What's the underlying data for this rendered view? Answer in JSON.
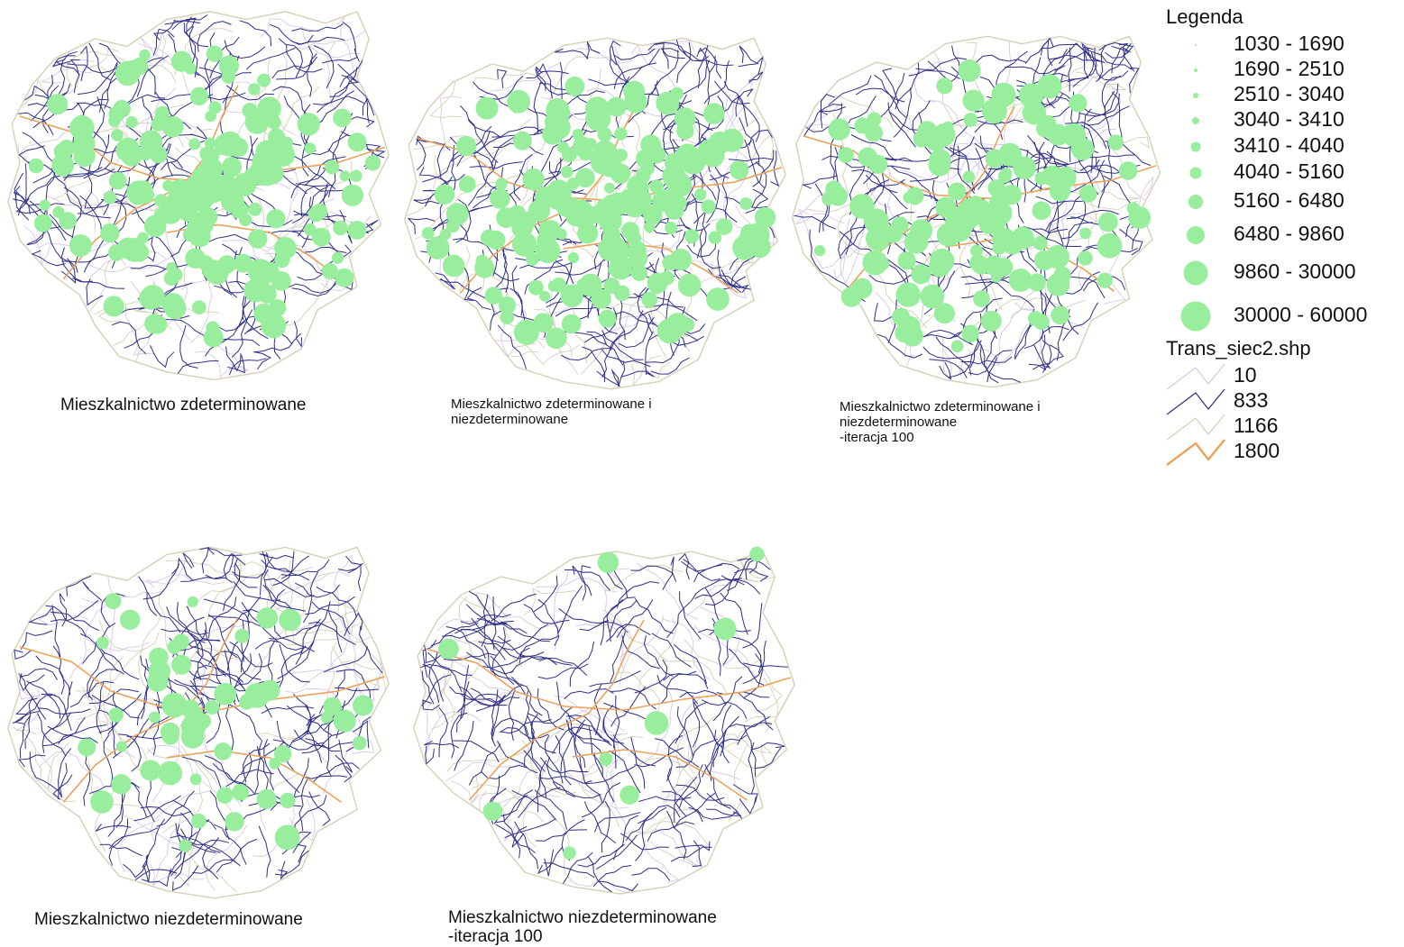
{
  "colors": {
    "settlement": "#98ee9c",
    "road_10": "#d8c8e6",
    "road_833": "#2e2f86",
    "road_1166": "#d6d0b6",
    "road_1800": "#eaa35c"
  },
  "maps": [
    {
      "caption": "Mieszkalnictwo zdeterminowane",
      "settlement_density": "very high"
    },
    {
      "caption": "Mieszkalnictwo zdeterminowane i\nniezdeterminowane",
      "settlement_density": "very high"
    },
    {
      "caption": "Mieszkalnictwo zdeterminowane i\nniezdeterminowane\n-iteracja 100",
      "settlement_density": "high"
    },
    {
      "caption": "Mieszkalnictwo niezdeterminowane",
      "settlement_density": "medium"
    },
    {
      "caption": "Mieszkalnictwo niezdeterminowane\n-iteracja 100",
      "settlement_density": "low"
    }
  ],
  "legend": {
    "title": "Legenda",
    "population_classes": [
      {
        "label": "1030 - 1690"
      },
      {
        "label": "1690 - 2510"
      },
      {
        "label": "2510 - 3040"
      },
      {
        "label": "3040 - 3410"
      },
      {
        "label": "3410 - 4040"
      },
      {
        "label": "4040 - 5160"
      },
      {
        "label": "5160 - 6480"
      },
      {
        "label": "6480 - 9860"
      },
      {
        "label": "9860 - 30000"
      },
      {
        "label": "30000 - 60000"
      }
    ],
    "network_title": "Trans_siec2.shp",
    "network_classes": [
      {
        "label": "10",
        "color_key": "road_10"
      },
      {
        "label": "833",
        "color_key": "road_833"
      },
      {
        "label": "1166",
        "color_key": "road_1166"
      },
      {
        "label": "1800",
        "color_key": "road_1800"
      }
    ]
  }
}
